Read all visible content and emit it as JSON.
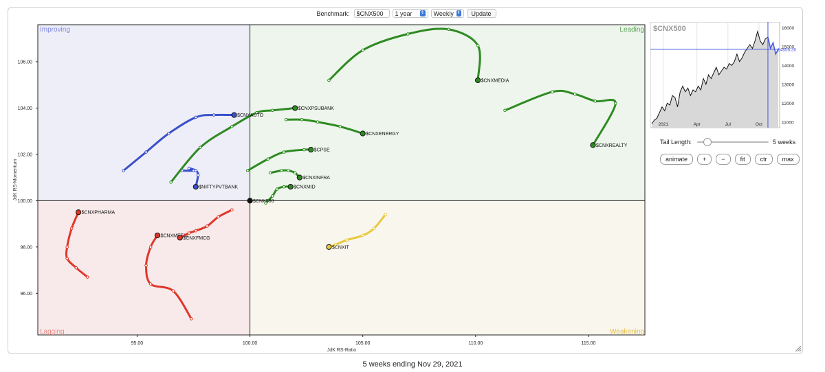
{
  "toolbar": {
    "benchmark_label": "Benchmark:",
    "benchmark_value": "$CNX500",
    "period_value": "1 year",
    "interval_value": "Weekly",
    "update_label": "Update"
  },
  "quadrants": {
    "improving": "Improving",
    "leading": "Leading",
    "lagging": "Lagging",
    "weakening": "Weakening"
  },
  "colors": {
    "improving": "#3a4fc9",
    "leading": "#2e8a22",
    "lagging": "#e0362a",
    "weakening": "#e8c83a",
    "improving_bg": "#eeeef9",
    "leading_bg": "#edf5ec",
    "lagging_bg": "#f8eaea",
    "weakening_bg": "#f9f6ee",
    "benchmark_line": "#4455dd"
  },
  "chart_data": [
    {
      "type": "scatter",
      "title": "",
      "xlabel": "JdK RS-Ratio",
      "ylabel": "JdK RS-Momentum",
      "xlim": [
        90.6,
        117.5
      ],
      "ylim": [
        94.2,
        107.6
      ],
      "x_ticks": [
        "95.00",
        "100.00",
        "105.00",
        "110.00",
        "115.00"
      ],
      "x_tick_values": [
        95,
        100,
        105,
        110,
        115
      ],
      "y_ticks": [
        "96.00",
        "98.00",
        "100.00",
        "102.00",
        "104.00",
        "106.00"
      ],
      "y_tick_values": [
        96,
        98,
        100,
        102,
        104,
        106
      ],
      "grid": false,
      "center": [
        100,
        100
      ],
      "series": [
        {
          "name": "$CNXMEDIA",
          "quadrant": "leading",
          "points": [
            [
              103.5,
              105.2
            ],
            [
              105.0,
              106.5
            ],
            [
              107.0,
              107.2
            ],
            [
              108.8,
              107.4
            ],
            [
              110.1,
              106.7
            ],
            [
              110.1,
              105.2
            ]
          ]
        },
        {
          "name": "$CNXREALTY",
          "quadrant": "leading",
          "points": [
            [
              111.3,
              103.9
            ],
            [
              113.4,
              104.7
            ],
            [
              114.4,
              104.6
            ],
            [
              115.3,
              104.3
            ],
            [
              116.2,
              104.2
            ],
            [
              115.2,
              102.4
            ]
          ]
        },
        {
          "name": "$CNXPSUBANK",
          "quadrant": "leading",
          "points": [
            [
              96.5,
              100.8
            ],
            [
              97.8,
              102.3
            ],
            [
              99.2,
              103.2
            ],
            [
              100.3,
              103.8
            ],
            [
              101.0,
              103.9
            ],
            [
              102.0,
              104.0
            ]
          ]
        },
        {
          "name": "$CNXENERGY",
          "quadrant": "leading",
          "points": [
            [
              101.6,
              103.5
            ],
            [
              102.3,
              103.5
            ],
            [
              103.0,
              103.4
            ],
            [
              104.0,
              103.2
            ],
            [
              105.0,
              102.9
            ]
          ]
        },
        {
          "name": "$CPSE",
          "quadrant": "leading",
          "points": [
            [
              99.9,
              101.3
            ],
            [
              100.8,
              101.8
            ],
            [
              101.5,
              102.1
            ],
            [
              102.4,
              102.2
            ],
            [
              102.7,
              102.2
            ]
          ]
        },
        {
          "name": "$CNXINFRA",
          "quadrant": "leading",
          "points": [
            [
              100.9,
              101.2
            ],
            [
              101.4,
              101.3
            ],
            [
              101.7,
              101.3
            ],
            [
              102.0,
              101.2
            ],
            [
              102.2,
              101.0
            ]
          ]
        },
        {
          "name": "$CNXMID",
          "quadrant": "leading",
          "points": [
            [
              100.7,
              99.9
            ],
            [
              101.0,
              100.2
            ],
            [
              101.2,
              100.5
            ],
            [
              101.5,
              100.6
            ],
            [
              101.8,
              100.6
            ]
          ]
        },
        {
          "name": "$CNXAUTO",
          "quadrant": "improving",
          "points": [
            [
              94.4,
              101.3
            ],
            [
              95.4,
              102.1
            ],
            [
              96.4,
              102.9
            ],
            [
              97.6,
              103.6
            ],
            [
              98.4,
              103.7
            ],
            [
              99.3,
              103.7
            ]
          ]
        },
        {
          "name": "$NIFTYPVTBANK",
          "quadrant": "improving",
          "points": [
            [
              97.0,
              101.3
            ],
            [
              97.5,
              101.3
            ],
            [
              97.3,
              101.4
            ],
            [
              97.6,
              101.3
            ],
            [
              97.7,
              101.1
            ],
            [
              97.6,
              100.6
            ]
          ]
        },
        {
          "name": "$CNX500",
          "quadrant": "benchmark",
          "points": [
            [
              100.0,
              100.0
            ]
          ]
        },
        {
          "name": "$CNXPHARMA",
          "quadrant": "lagging",
          "points": [
            [
              92.8,
              96.7
            ],
            [
              92.3,
              97.1
            ],
            [
              91.9,
              97.5
            ],
            [
              91.9,
              98.0
            ],
            [
              92.1,
              98.8
            ],
            [
              92.4,
              99.5
            ]
          ]
        },
        {
          "name": "$CNXMETAL",
          "quadrant": "lagging",
          "points": [
            [
              97.4,
              94.9
            ],
            [
              96.6,
              96.1
            ],
            [
              95.6,
              96.4
            ],
            [
              95.4,
              97.2
            ],
            [
              95.6,
              98.0
            ],
            [
              95.9,
              98.5
            ]
          ]
        },
        {
          "name": "$CNXFMCG",
          "quadrant": "lagging",
          "points": [
            [
              99.2,
              99.6
            ],
            [
              98.6,
              99.3
            ],
            [
              98.1,
              98.9
            ],
            [
              97.6,
              98.7
            ],
            [
              97.3,
              98.6
            ],
            [
              96.9,
              98.4
            ]
          ]
        },
        {
          "name": "$CNXIT",
          "quadrant": "weakening",
          "points": [
            [
              106.0,
              99.4
            ],
            [
              105.5,
              98.8
            ],
            [
              105.0,
              98.5
            ],
            [
              104.3,
              98.3
            ],
            [
              103.8,
              98.1
            ],
            [
              103.5,
              98.0
            ]
          ]
        }
      ]
    },
    {
      "type": "area",
      "title": "$CNX500",
      "x_ticks": [
        "2021",
        "Apr",
        "Jul",
        "Oct"
      ],
      "x_tick_positions": [
        0.1,
        0.36,
        0.6,
        0.84
      ],
      "y_ticks": [
        "16000",
        "15000",
        "14000",
        "13000",
        "12000",
        "11000"
      ],
      "y_tick_values": [
        16000,
        15000,
        14000,
        13000,
        12000,
        11000
      ],
      "ylim": [
        10700,
        16300
      ],
      "last_value": "14856.30",
      "reference_value": 14856.3,
      "values": [
        10900,
        11100,
        11200,
        11500,
        11800,
        11600,
        12000,
        11900,
        12400,
        12300,
        11800,
        12600,
        12900,
        12600,
        12800,
        12400,
        12700,
        12600,
        12900,
        12700,
        13300,
        13000,
        13500,
        13300,
        13600,
        13900,
        13500,
        13700,
        13900,
        13800,
        14100,
        14000,
        14200,
        14600,
        14200,
        14400,
        14700,
        14900,
        15100,
        14900,
        15300,
        15800,
        15300,
        15100,
        15400,
        15500,
        14900,
        15200,
        14600,
        14856.3
      ]
    }
  ],
  "side_panel": {
    "tail_label": "Tail Length:",
    "tail_value": "5 weeks",
    "tail_fraction": 0.1,
    "buttons": [
      "animate",
      "+",
      "−",
      "fit",
      "ctr",
      "max"
    ]
  },
  "caption": "5 weeks ending Nov 29, 2021"
}
